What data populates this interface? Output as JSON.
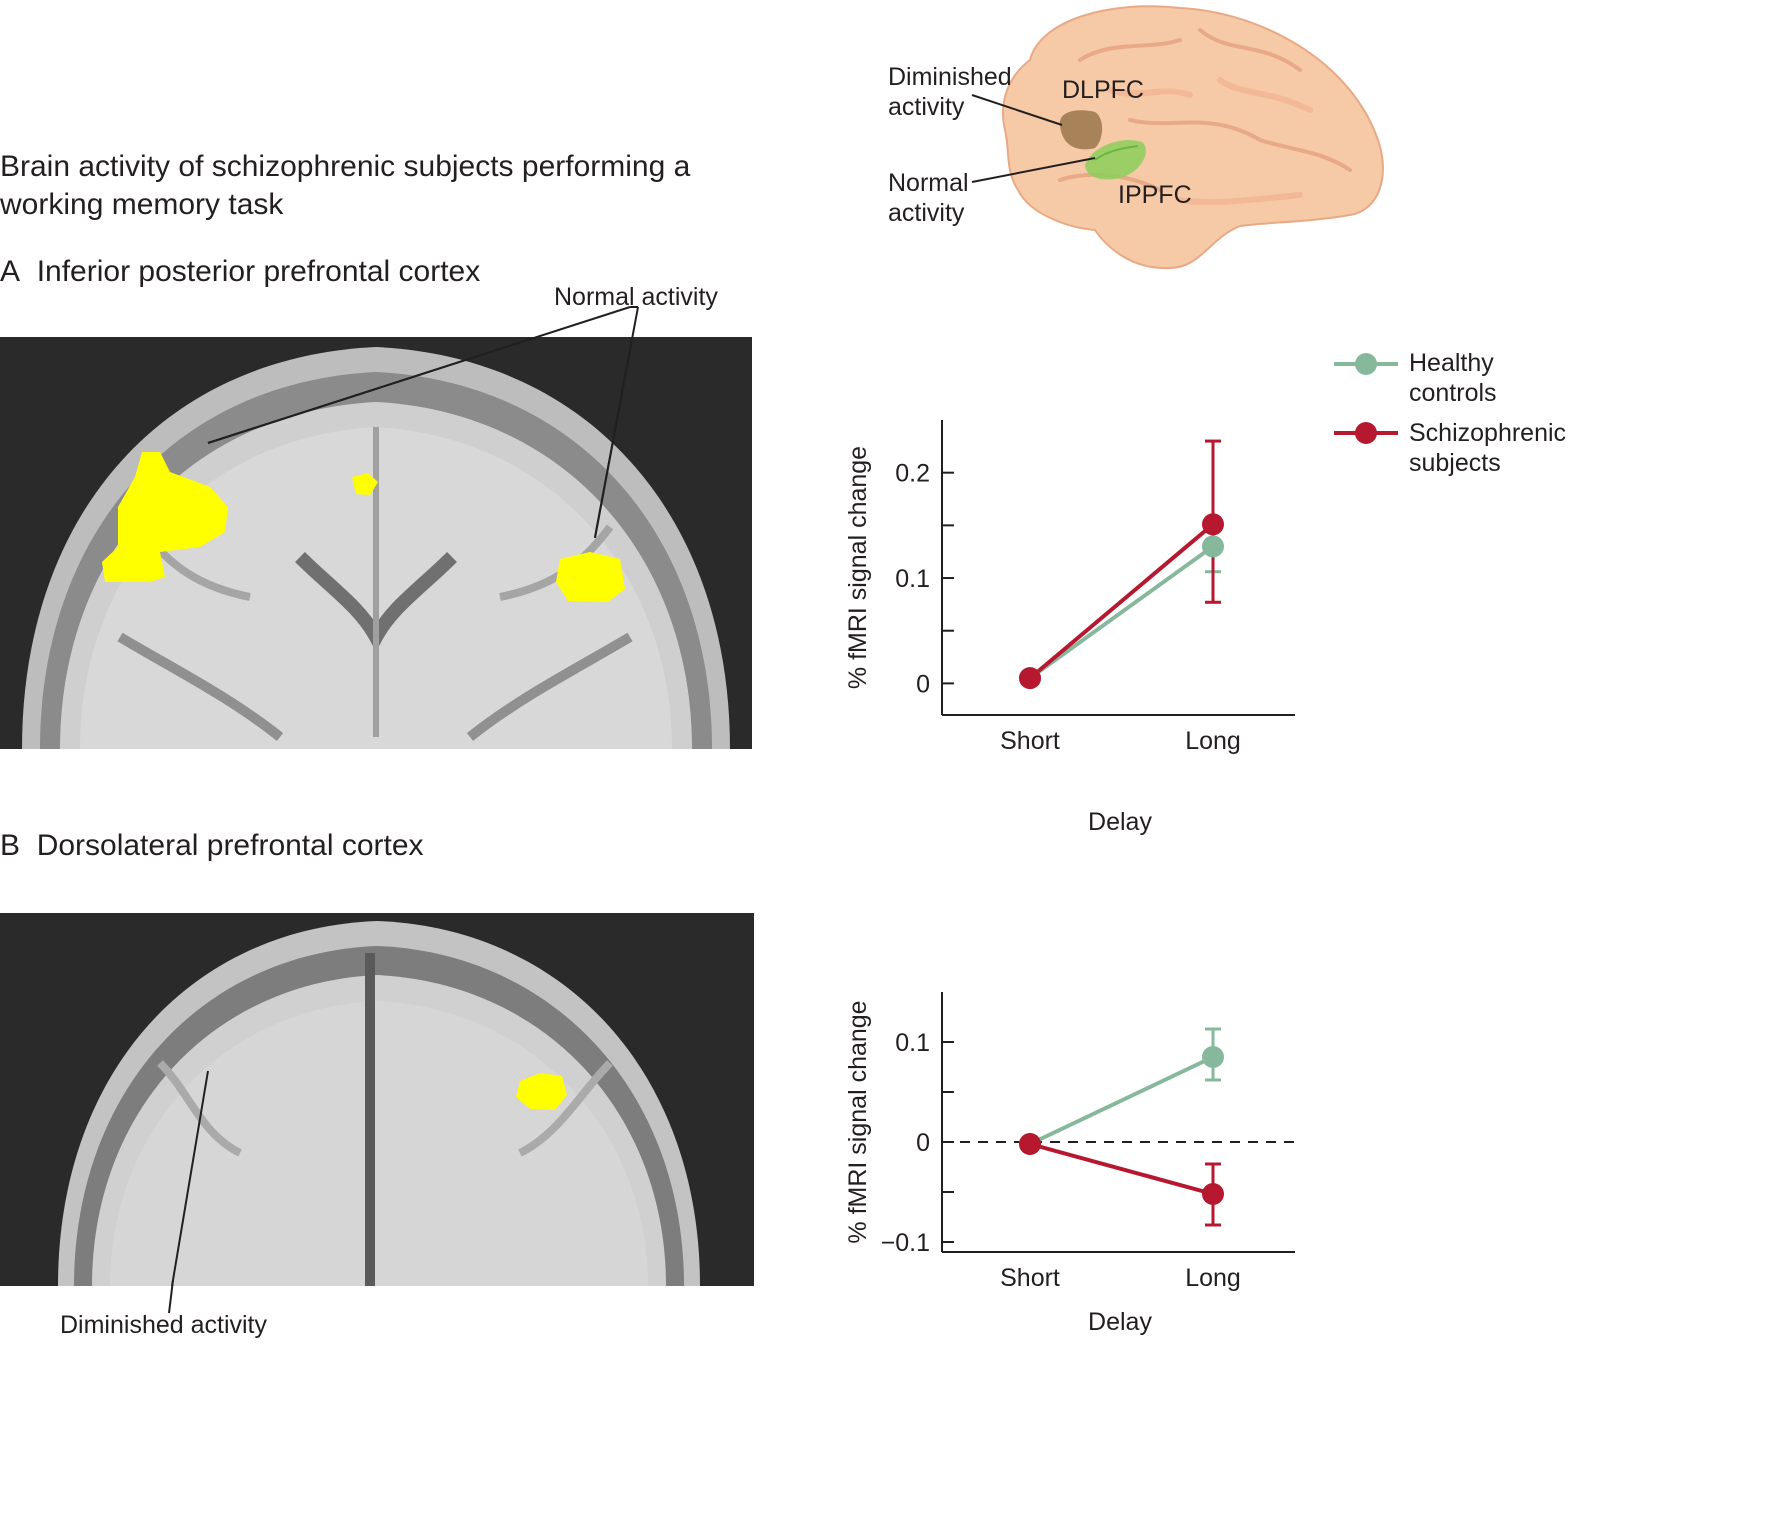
{
  "figure": {
    "title": "Brain activity of schizophrenic subjects performing a working memory task",
    "panel_a": {
      "letter": "A",
      "label": "Inferior posterior prefrontal cortex",
      "annotation": "Normal activity"
    },
    "panel_b": {
      "letter": "B",
      "label": "Dorsolateral prefrontal cortex",
      "annotation": "Diminished activity"
    },
    "brain_diagram": {
      "diminished_label": "Diminished activity",
      "normal_label": "Normal activity",
      "region_dlpfc": "DLPFC",
      "region_ippfc": "IPPFC",
      "colors": {
        "brain": "#f6c9a7",
        "dlpfc": "#a07a50",
        "ippfc": "#8ccf5a"
      }
    },
    "legend": {
      "healthy": "Healthy controls",
      "schizophrenic": "Schizophrenic subjects"
    },
    "colors": {
      "healthy": "#86b89c",
      "schizophrenic": "#b5182f",
      "activation": "#ffff00"
    }
  },
  "chart_data": [
    {
      "type": "line",
      "panel": "A",
      "categories": [
        "Short",
        "Long"
      ],
      "xlabel": "Delay",
      "ylabel": "% fMRI signal change",
      "ylim": [
        -0.03,
        0.25
      ],
      "yticks": [
        0,
        0.1,
        0.2
      ],
      "ytick_labels": [
        "0",
        "0.1",
        "0.2"
      ],
      "series": [
        {
          "name": "Healthy controls",
          "values": [
            0.005,
            0.13
          ],
          "error_low": [
            null,
            0.106
          ],
          "error_high": [
            null,
            0.13
          ]
        },
        {
          "name": "Schizophrenic subjects",
          "values": [
            0.005,
            0.151
          ],
          "error_low": [
            null,
            0.077
          ],
          "error_high": [
            null,
            0.23
          ]
        }
      ]
    },
    {
      "type": "line",
      "panel": "B",
      "categories": [
        "Short",
        "Long"
      ],
      "xlabel": "Delay",
      "ylabel": "% fMRI signal change",
      "ylim": [
        -0.11,
        0.15
      ],
      "yticks": [
        -0.1,
        0,
        0.1
      ],
      "ytick_labels": [
        "−0.1",
        "0",
        "0.1"
      ],
      "zero_line": "dashed",
      "series": [
        {
          "name": "Healthy controls",
          "values": [
            -0.002,
            0.085
          ],
          "error_low": [
            null,
            0.062
          ],
          "error_high": [
            null,
            0.113
          ]
        },
        {
          "name": "Schizophrenic subjects",
          "values": [
            -0.002,
            -0.052
          ],
          "error_low": [
            null,
            -0.083
          ],
          "error_high": [
            null,
            -0.022
          ]
        }
      ]
    }
  ]
}
